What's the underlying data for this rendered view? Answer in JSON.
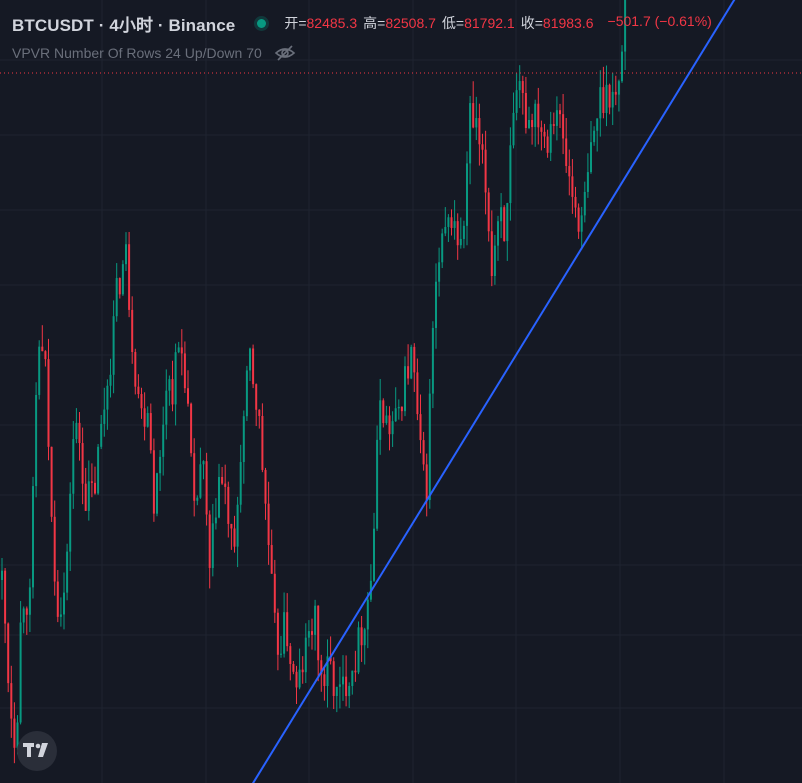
{
  "header": {
    "symbol": "BTCUSDT · 4小时 · Binance",
    "open_label": "开=",
    "open": "82485.3",
    "high_label": "高=",
    "high": "82508.7",
    "low_label": "低=",
    "low": "81792.1",
    "close_label": "收=",
    "close": "81983.6",
    "change": "−501.7 (−0.61%)"
  },
  "indicator": {
    "label": "VPVR Number Of Rows 24 Up/Down 70"
  },
  "colors": {
    "background": "#151924",
    "up": "#089981",
    "down": "#f23645",
    "trendline": "#2962ff",
    "grid": "#1f2430",
    "text": "#d1d4dc"
  },
  "logo": {
    "icon": "tradingview-logo-icon"
  },
  "chart_data": {
    "type": "candlestick",
    "symbol": "BTCUSDT",
    "timeframe": "4小时",
    "exchange": "Binance",
    "grid": true,
    "price_range": [
      74500,
      88000
    ],
    "anchors": [
      [
        0,
        78500
      ],
      [
        6,
        77000
      ],
      [
        10,
        75900
      ],
      [
        16,
        75200
      ],
      [
        22,
        77800
      ],
      [
        30,
        77600
      ],
      [
        38,
        82200
      ],
      [
        46,
        81500
      ],
      [
        52,
        78800
      ],
      [
        58,
        77600
      ],
      [
        66,
        77800
      ],
      [
        72,
        80400
      ],
      [
        78,
        80600
      ],
      [
        86,
        79400
      ],
      [
        94,
        79500
      ],
      [
        102,
        80700
      ],
      [
        110,
        81800
      ],
      [
        118,
        83100
      ],
      [
        126,
        83600
      ],
      [
        134,
        81800
      ],
      [
        142,
        80800
      ],
      [
        148,
        81100
      ],
      [
        154,
        79400
      ],
      [
        160,
        80000
      ],
      [
        166,
        81500
      ],
      [
        172,
        81300
      ],
      [
        180,
        82100
      ],
      [
        186,
        81500
      ],
      [
        194,
        79000
      ],
      [
        202,
        80200
      ],
      [
        210,
        78000
      ],
      [
        218,
        79800
      ],
      [
        226,
        79400
      ],
      [
        234,
        78200
      ],
      [
        240,
        80100
      ],
      [
        250,
        81800
      ],
      [
        258,
        80900
      ],
      [
        266,
        79200
      ],
      [
        276,
        76800
      ],
      [
        286,
        77200
      ],
      [
        296,
        76000
      ],
      [
        306,
        76800
      ],
      [
        314,
        77400
      ],
      [
        322,
        76200
      ],
      [
        330,
        76500
      ],
      [
        338,
        75900
      ],
      [
        348,
        76400
      ],
      [
        356,
        76700
      ],
      [
        366,
        77500
      ],
      [
        372,
        78200
      ],
      [
        380,
        81200
      ],
      [
        388,
        80600
      ],
      [
        396,
        80700
      ],
      [
        404,
        81400
      ],
      [
        412,
        81900
      ],
      [
        420,
        80200
      ],
      [
        426,
        79400
      ],
      [
        434,
        82800
      ],
      [
        442,
        83700
      ],
      [
        452,
        84300
      ],
      [
        462,
        83600
      ],
      [
        470,
        86000
      ],
      [
        478,
        85600
      ],
      [
        486,
        84700
      ],
      [
        492,
        83400
      ],
      [
        500,
        84600
      ],
      [
        506,
        83900
      ],
      [
        512,
        85700
      ],
      [
        520,
        86400
      ],
      [
        528,
        85900
      ],
      [
        536,
        86200
      ],
      [
        546,
        85600
      ],
      [
        556,
        86300
      ],
      [
        566,
        85200
      ],
      [
        574,
        84500
      ],
      [
        582,
        84100
      ],
      [
        592,
        85500
      ],
      [
        600,
        86300
      ],
      [
        610,
        86500
      ],
      [
        618,
        86200
      ],
      [
        626,
        88400
      ],
      [
        634,
        88900
      ],
      [
        642,
        89400
      ]
    ],
    "trendline": {
      "from": [
        246,
        74300
      ],
      "to": [
        752,
        88500
      ],
      "color": "#2962ff",
      "arrow": "end"
    }
  }
}
